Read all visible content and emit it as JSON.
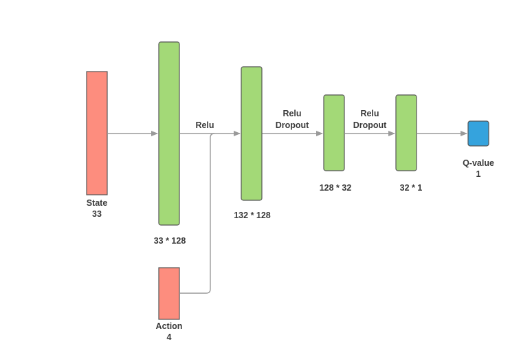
{
  "colors": {
    "input": "#fd8d7e",
    "layer": "#a3d977",
    "output": "#35a3dd",
    "edge": "#9a9a9a"
  },
  "nodes": {
    "state": {
      "name": "State",
      "size": "33"
    },
    "action": {
      "name": "Action",
      "size": "4"
    },
    "layer1": {
      "dims": "33 * 128"
    },
    "layer2": {
      "dims": "132 * 128"
    },
    "layer3": {
      "dims": "128 * 32"
    },
    "layer4": {
      "dims": "32 * 1"
    },
    "output": {
      "name": "Q-value",
      "size": "1"
    }
  },
  "edges": {
    "relu_1": {
      "activation": "Relu"
    },
    "relu_dropout_2": {
      "activation": "Relu",
      "regularization": "Dropout"
    },
    "relu_dropout_3": {
      "activation": "Relu",
      "regularization": "Dropout"
    }
  }
}
